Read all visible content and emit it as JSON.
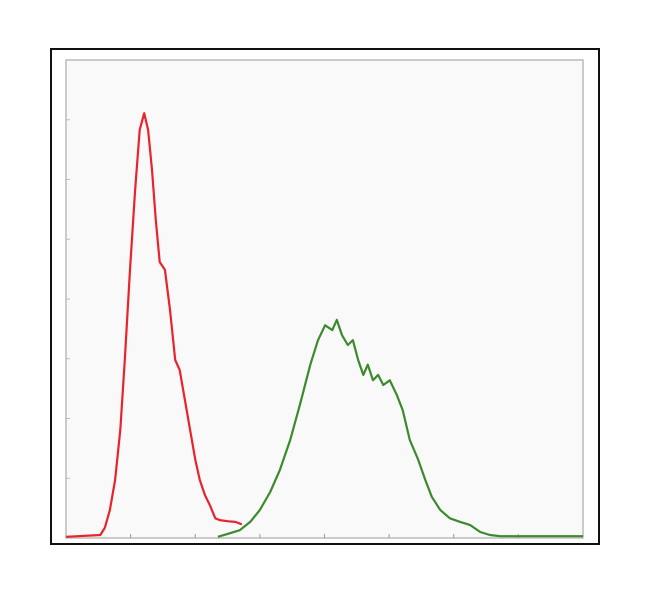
{
  "chart_data": {
    "type": "line",
    "xlim": [
      0,
      8
    ],
    "ylim": [
      0,
      8
    ],
    "xticks": [
      1,
      2,
      3,
      4,
      5,
      6,
      7
    ],
    "yticks": [
      1,
      2,
      3,
      4,
      5,
      6,
      7
    ],
    "series": [
      {
        "color": "#e8232b",
        "x": [
          0,
          0.53,
          0.6,
          0.68,
          0.76,
          0.84,
          0.91,
          0.99,
          1.07,
          1.14,
          1.21,
          1.27,
          1.33,
          1.39,
          1.45,
          1.53,
          1.61,
          1.69,
          1.76,
          1.84,
          1.92,
          2.0,
          2.07,
          2.15,
          2.23,
          2.31,
          2.38,
          2.51,
          2.62,
          2.72
        ],
        "values": [
          0.02,
          0.05,
          0.17,
          0.47,
          0.97,
          1.81,
          2.98,
          4.49,
          5.82,
          6.83,
          7.11,
          6.83,
          6.16,
          5.32,
          4.62,
          4.49,
          3.82,
          2.98,
          2.81,
          2.31,
          1.81,
          1.31,
          0.97,
          0.72,
          0.54,
          0.33,
          0.3,
          0.28,
          0.27,
          0.23
        ]
      },
      {
        "color": "#3b8a2c",
        "x": [
          2.35,
          2.54,
          2.69,
          2.85,
          3.0,
          3.16,
          3.31,
          3.47,
          3.62,
          3.78,
          3.9,
          4.01,
          4.12,
          4.19,
          4.27,
          4.36,
          4.44,
          4.52,
          4.6,
          4.67,
          4.75,
          4.83,
          4.91,
          5.01,
          5.12,
          5.21,
          5.32,
          5.45,
          5.56,
          5.66,
          5.79,
          5.94,
          6.1,
          6.25,
          6.41,
          6.56,
          6.72,
          8.0
        ],
        "values": [
          0.02,
          0.08,
          0.13,
          0.27,
          0.47,
          0.77,
          1.14,
          1.64,
          2.23,
          2.9,
          3.31,
          3.56,
          3.48,
          3.65,
          3.4,
          3.23,
          3.31,
          2.98,
          2.73,
          2.9,
          2.64,
          2.73,
          2.56,
          2.64,
          2.39,
          2.14,
          1.64,
          1.31,
          0.97,
          0.69,
          0.47,
          0.33,
          0.27,
          0.22,
          0.1,
          0.05,
          0.03,
          0.03
        ]
      }
    ]
  }
}
